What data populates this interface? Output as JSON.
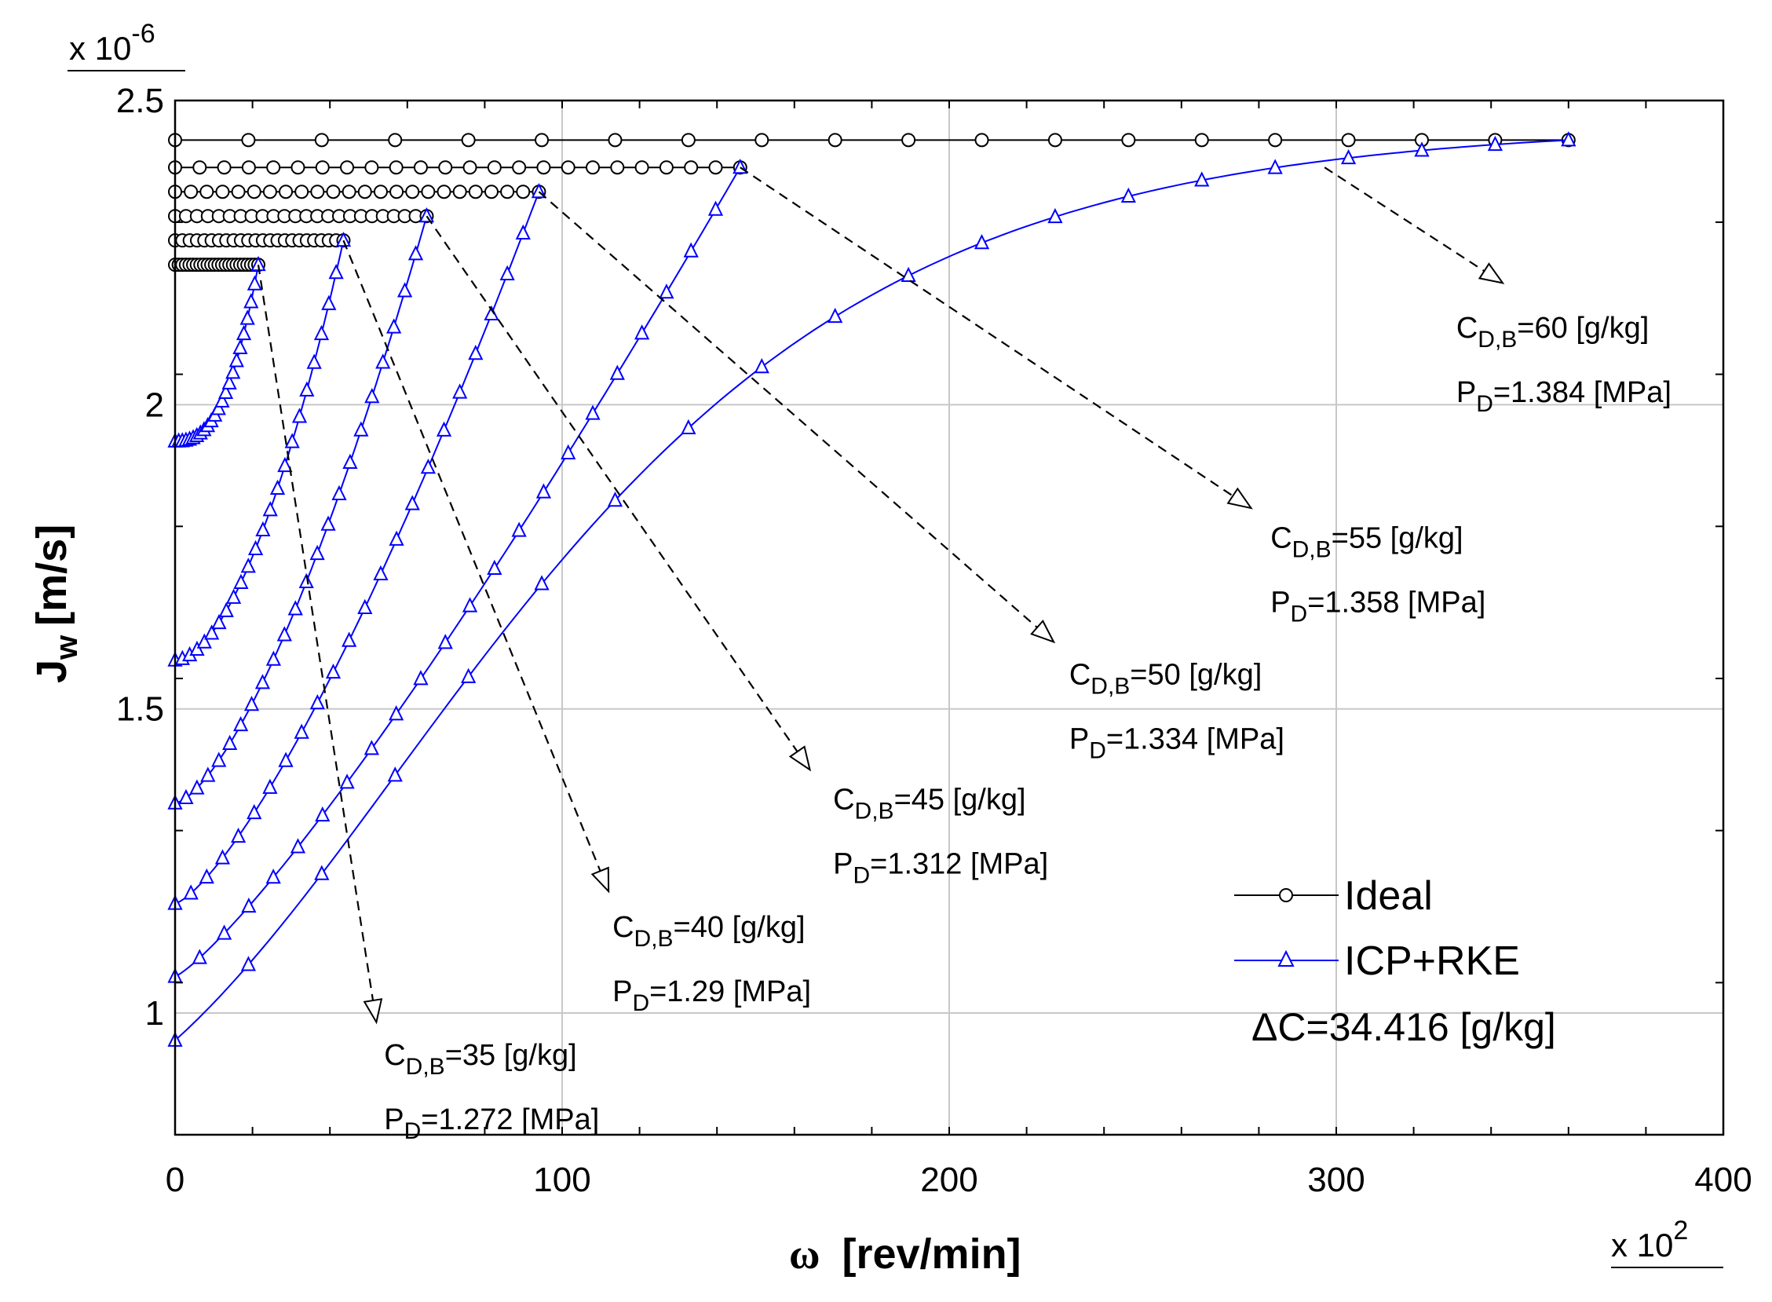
{
  "chart_data": {
    "type": "line",
    "xlabel": "[rev/min]",
    "xlabel_symbol": "ω",
    "ylabel_main": "J",
    "ylabel_sub": "w",
    "ylabel_unit": "[m/s]",
    "x_multiplier": "x 10",
    "x_multiplier_exp": "2",
    "y_multiplier": "x 10",
    "y_multiplier_exp": "-6",
    "xlim": [
      0,
      400
    ],
    "ylim": [
      0.8,
      2.5
    ],
    "x_ticks": [
      0,
      100,
      200,
      300,
      400
    ],
    "x_tick_labels": [
      "0",
      "100",
      "200",
      "300",
      "400"
    ],
    "y_ticks": [
      1,
      1.5,
      2,
      2.5
    ],
    "y_tick_labels": [
      "1",
      "1.5",
      "2",
      "2.5"
    ],
    "grid": true,
    "legend": {
      "position": "bottom-right",
      "entries": [
        {
          "label": "Ideal",
          "color": "#000000",
          "marker": "circle"
        },
        {
          "label": "ICP+RKE",
          "color": "#0000ff",
          "marker": "triangle"
        }
      ],
      "note": "ΔC=34.416 [g/kg]"
    },
    "series": [
      {
        "name": "Ideal C_D,B=35",
        "color": "#000000",
        "marker": "circle",
        "x": [
          0,
          21.5
        ],
        "y": [
          2.23,
          2.23
        ],
        "markers": 24
      },
      {
        "name": "ICP+RKE C_D,B=35",
        "color": "#0000ff",
        "marker": "triangle",
        "x": [
          0,
          21.5
        ],
        "y_start": 1.94,
        "y_end": 2.23,
        "shape": 2.6,
        "markers": 24
      },
      {
        "name": "Ideal C_D,B=40",
        "color": "#000000",
        "marker": "circle",
        "x": [
          0,
          43.5
        ],
        "y": [
          2.27,
          2.27
        ],
        "markers": 24
      },
      {
        "name": "ICP+RKE C_D,B=40",
        "color": "#0000ff",
        "marker": "triangle",
        "x": [
          0,
          43.5
        ],
        "y_start": 1.58,
        "y_end": 2.27,
        "shape": 1.8,
        "markers": 24
      },
      {
        "name": "Ideal C_D,B=45",
        "color": "#000000",
        "marker": "circle",
        "x": [
          0,
          65
        ],
        "y": [
          2.31,
          2.31
        ],
        "markers": 24
      },
      {
        "name": "ICP+RKE C_D,B=45",
        "color": "#0000ff",
        "marker": "triangle",
        "x": [
          0,
          65
        ],
        "y_start": 1.345,
        "y_end": 2.31,
        "shape": 1.5,
        "markers": 24
      },
      {
        "name": "Ideal C_D,B=50",
        "color": "#000000",
        "marker": "circle",
        "x": [
          0,
          94
        ],
        "y": [
          2.35,
          2.35
        ],
        "markers": 24
      },
      {
        "name": "ICP+RKE C_D,B=50",
        "color": "#0000ff",
        "marker": "triangle",
        "x": [
          0,
          94
        ],
        "y_start": 1.18,
        "y_end": 2.35,
        "shape": 1.35,
        "markers": 24
      },
      {
        "name": "Ideal C_D,B=55",
        "color": "#000000",
        "marker": "circle",
        "x": [
          0,
          146
        ],
        "y": [
          2.39,
          2.39
        ],
        "markers": 24
      },
      {
        "name": "ICP+RKE C_D,B=55",
        "color": "#0000ff",
        "marker": "triangle",
        "x": [
          0,
          146
        ],
        "y_start": 1.06,
        "y_end": 2.39,
        "shape": 1.2,
        "markers": 24
      },
      {
        "name": "Ideal C_D,B=60",
        "color": "#000000",
        "marker": "circle",
        "x": [
          0,
          360
        ],
        "y": [
          2.435,
          2.435
        ],
        "markers": 20
      },
      {
        "name": "ICP+RKE C_D,B=60",
        "color": "#0000ff",
        "marker": "triangle",
        "x": [
          0,
          360
        ],
        "y_start": 0.955,
        "y_end": 2.435,
        "shape": "gompertz",
        "markers": 20
      }
    ],
    "annotations": [
      {
        "c_label": "C",
        "c_sub": "D,B",
        "c_value": "=35 [g/kg]",
        "p_label": "P",
        "p_sub": "D",
        "p_value": "=1.272 [MPa]",
        "arrow_from": [
          21.5,
          2.23
        ],
        "arrow_to": [
          52,
          0.985
        ],
        "text_at": [
          54,
          0.915
        ]
      },
      {
        "c_label": "C",
        "c_sub": "D,B",
        "c_value": "=40 [g/kg]",
        "p_label": "P",
        "p_sub": "D",
        "p_value": "=1.29 [MPa]",
        "arrow_from": [
          43.5,
          2.27
        ],
        "arrow_to": [
          112,
          1.2
        ],
        "text_at": [
          113,
          1.125
        ]
      },
      {
        "c_label": "C",
        "c_sub": "D,B",
        "c_value": "=45 [g/kg]",
        "p_label": "P",
        "p_sub": "D",
        "p_value": "=1.312 [MPa]",
        "arrow_from": [
          65,
          2.31
        ],
        "arrow_to": [
          164,
          1.4
        ],
        "text_at": [
          170,
          1.335
        ]
      },
      {
        "c_label": "C",
        "c_sub": "D,B",
        "c_value": "=50 [g/kg]",
        "p_label": "P",
        "p_sub": "D",
        "p_value": "=1.334 [MPa]",
        "arrow_from": [
          94,
          2.35
        ],
        "arrow_to": [
          227,
          1.61
        ],
        "text_at": [
          231,
          1.54
        ]
      },
      {
        "c_label": "C",
        "c_sub": "D,B",
        "c_value": "=55 [g/kg]",
        "p_label": "P",
        "p_sub": "D",
        "p_value": "=1.358 [MPa]",
        "arrow_from": [
          146,
          2.39
        ],
        "arrow_to": [
          278,
          1.83
        ],
        "text_at": [
          283,
          1.765
        ]
      },
      {
        "c_label": "C",
        "c_sub": "D,B",
        "c_value": "=60 [g/kg]",
        "p_label": "P",
        "p_sub": "D",
        "p_value": "=1.384 [MPa]",
        "arrow_from": [
          297,
          2.39
        ],
        "arrow_to": [
          343,
          2.2
        ],
        "text_at": [
          331,
          2.11
        ]
      }
    ]
  }
}
